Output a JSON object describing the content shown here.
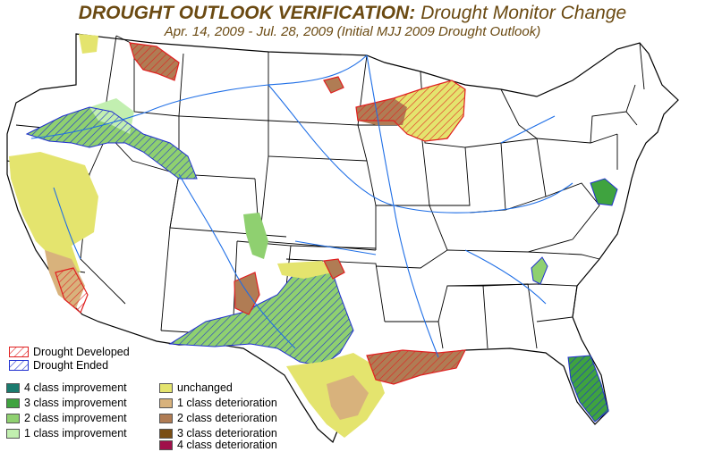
{
  "title": {
    "main": "DROUGHT OUTLOOK VERIFICATION:",
    "sub": "Drought Monitor Change",
    "dates": "Apr. 14, 2009 - Jul. 28, 2009 (Initial MJJ 2009 Drought Outlook)"
  },
  "legend": {
    "hatch": [
      {
        "label": "Drought Developed",
        "color": "#e02020"
      },
      {
        "label": "Drought Ended",
        "color": "#2030d0"
      }
    ],
    "improvement": [
      {
        "label": "4 class improvement",
        "color": "#1a7a6e"
      },
      {
        "label": "3 class improvement",
        "color": "#3fa33f"
      },
      {
        "label": "2 class improvement",
        "color": "#8fd070"
      },
      {
        "label": "1 class improvement",
        "color": "#c2efb0"
      }
    ],
    "deterioration": [
      {
        "label": "unchanged",
        "color": "#e4e46e"
      },
      {
        "label": "1 class deterioration",
        "color": "#d8b27c"
      },
      {
        "label": "2 class deterioration",
        "color": "#b07c54"
      },
      {
        "label": "3 class deterioration",
        "color": "#7a4e14"
      },
      {
        "label": "4 class deterioration",
        "color": "#a0104a"
      }
    ]
  },
  "colors": {
    "land": "#ffffff",
    "border": "#000000",
    "river": "#1e6ee6",
    "title_text": "#6b4a12"
  }
}
